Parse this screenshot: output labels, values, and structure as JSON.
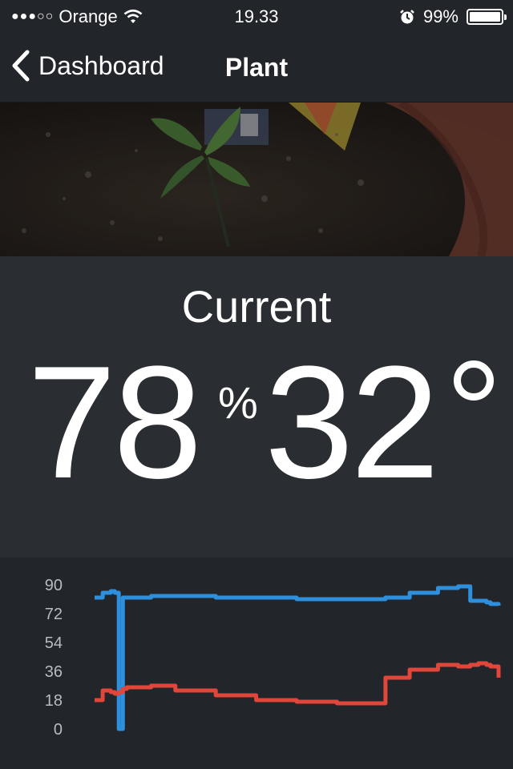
{
  "status_bar": {
    "carrier": "Orange",
    "time": "19.33",
    "battery": "99%",
    "battery_level": 0.99
  },
  "nav": {
    "back_label": "Dashboard",
    "title": "Plant"
  },
  "current": {
    "label": "Current",
    "humidity": "78",
    "humidity_unit": "%",
    "temperature": "32"
  },
  "chart_data": {
    "type": "line",
    "title": "",
    "xlabel": "",
    "ylabel": "",
    "ylim": [
      0,
      90
    ],
    "yticks": [
      90,
      72,
      54,
      36,
      18,
      0
    ],
    "grid": false,
    "x": [
      0,
      2,
      4,
      5,
      6,
      7,
      8,
      10,
      14,
      20,
      30,
      40,
      50,
      60,
      70,
      72,
      78,
      85,
      90,
      93,
      95,
      97,
      98,
      100
    ],
    "series": [
      {
        "color": "#2e8fdc",
        "values": [
          82,
          85,
          86,
          85,
          0,
          82,
          82,
          82,
          83,
          83,
          82,
          82,
          81,
          81,
          81,
          82,
          85,
          88,
          89,
          80,
          80,
          79,
          78,
          77
        ]
      },
      {
        "color": "#e0463a",
        "values": [
          18,
          24,
          23,
          22,
          23,
          25,
          26,
          26,
          27,
          24,
          21,
          18,
          17,
          16,
          16,
          32,
          37,
          40,
          39,
          40,
          41,
          40,
          39,
          32
        ]
      }
    ]
  }
}
